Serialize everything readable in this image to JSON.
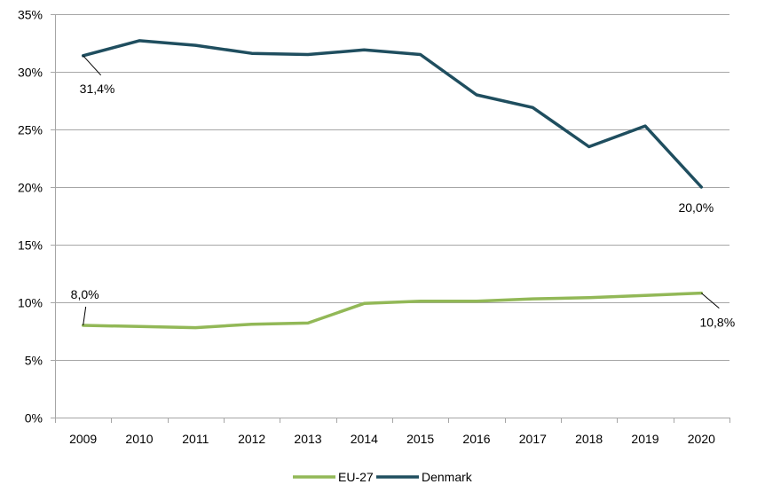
{
  "chart_data": {
    "type": "line",
    "title": "",
    "xlabel": "",
    "ylabel": "",
    "categories": [
      "2009",
      "2010",
      "2011",
      "2012",
      "2013",
      "2014",
      "2015",
      "2016",
      "2017",
      "2018",
      "2019",
      "2020"
    ],
    "ylim": [
      0,
      35
    ],
    "yticks": [
      0,
      5,
      10,
      15,
      20,
      25,
      30,
      35
    ],
    "ytick_labels": [
      "0%",
      "5%",
      "10%",
      "15%",
      "20%",
      "25%",
      "30%",
      "35%"
    ],
    "grid": true,
    "legend_position": "bottom",
    "series": [
      {
        "name": "EU-27",
        "color": "#92b857",
        "values": [
          8.0,
          7.9,
          7.8,
          8.1,
          8.2,
          9.9,
          10.1,
          10.1,
          10.3,
          10.4,
          10.6,
          10.8
        ]
      },
      {
        "name": "Denmark",
        "color": "#1f4e5f",
        "values": [
          31.4,
          32.7,
          32.3,
          31.6,
          31.5,
          31.9,
          31.5,
          28.0,
          26.9,
          23.5,
          25.3,
          20.0
        ]
      }
    ],
    "annotations": [
      {
        "series": 1,
        "index": 0,
        "text": "31,4%"
      },
      {
        "series": 1,
        "index": 11,
        "text": "20,0%"
      },
      {
        "series": 0,
        "index": 0,
        "text": "8,0%"
      },
      {
        "series": 0,
        "index": 11,
        "text": "10,8%"
      }
    ]
  }
}
